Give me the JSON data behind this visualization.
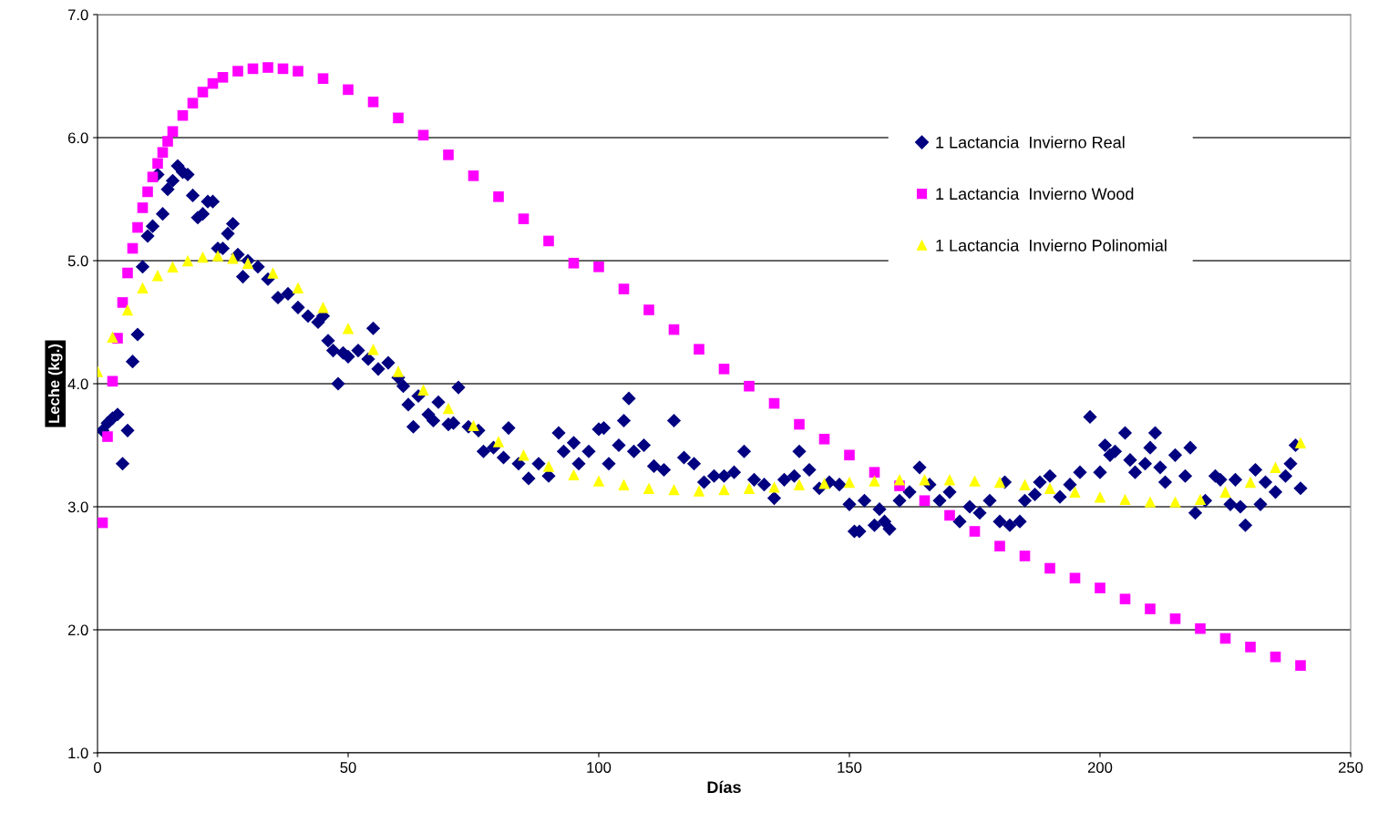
{
  "chart_data": {
    "type": "scatter",
    "xlabel": "Días",
    "ylabel": "Leche (kg.)",
    "xlim": [
      0,
      250
    ],
    "xticks": [
      0,
      50,
      100,
      150,
      200,
      250
    ],
    "ylim": [
      1,
      7
    ],
    "yticks": [
      {
        "value": 1,
        "label": "1.0"
      },
      {
        "value": 2,
        "label": "2.0"
      },
      {
        "value": 3,
        "label": "3.0"
      },
      {
        "value": 4,
        "label": "4.0"
      },
      {
        "value": 5,
        "label": "5.0"
      },
      {
        "value": 6,
        "label": "6.0"
      },
      {
        "value": 7,
        "label": "7.0"
      }
    ],
    "grid": "y",
    "legend": "top right",
    "series": [
      {
        "name": "1 Lactancia  Invierno Real",
        "color": "#000080",
        "marker": "diamond",
        "x": [
          1,
          2,
          3,
          4,
          5,
          6,
          7,
          8,
          9,
          10,
          11,
          12,
          13,
          14,
          15,
          16,
          17,
          18,
          19,
          20,
          21,
          22,
          23,
          24,
          25,
          26,
          27,
          28,
          29,
          30,
          32,
          34,
          36,
          38,
          40,
          42,
          44,
          45,
          46,
          47,
          48,
          49,
          50,
          52,
          54,
          55,
          56,
          58,
          60,
          61,
          62,
          63,
          64,
          66,
          67,
          68,
          70,
          71,
          72,
          74,
          76,
          77,
          79,
          81,
          82,
          84,
          86,
          88,
          90,
          92,
          93,
          95,
          96,
          98,
          100,
          101,
          102,
          104,
          105,
          106,
          107,
          109,
          111,
          113,
          115,
          117,
          119,
          121,
          123,
          125,
          127,
          129,
          131,
          133,
          135,
          137,
          139,
          140,
          142,
          144,
          146,
          148,
          150,
          151,
          152,
          153,
          155,
          156,
          157,
          158,
          160,
          162,
          164,
          166,
          168,
          170,
          172,
          174,
          176,
          178,
          180,
          181,
          182,
          184,
          185,
          187,
          188,
          190,
          192,
          194,
          196,
          198,
          200,
          201,
          202,
          203,
          205,
          206,
          207,
          209,
          210,
          211,
          212,
          213,
          215,
          217,
          218,
          219,
          221,
          223,
          224,
          226,
          227,
          228,
          229,
          231,
          232,
          233,
          235,
          237,
          238,
          239,
          240
        ],
        "values": [
          3.62,
          3.68,
          3.72,
          3.75,
          3.35,
          3.62,
          4.18,
          4.4,
          4.95,
          5.2,
          5.28,
          5.7,
          5.38,
          5.58,
          5.65,
          5.77,
          5.72,
          5.7,
          5.53,
          5.35,
          5.38,
          5.48,
          5.48,
          5.1,
          5.1,
          5.22,
          5.3,
          5.05,
          4.87,
          5.0,
          4.95,
          4.85,
          4.7,
          4.73,
          4.62,
          4.55,
          4.5,
          4.55,
          4.35,
          4.27,
          4.0,
          4.25,
          4.22,
          4.27,
          4.2,
          4.45,
          4.12,
          4.17,
          4.05,
          3.98,
          3.83,
          3.65,
          3.9,
          3.75,
          3.7,
          3.85,
          3.67,
          3.68,
          3.97,
          3.65,
          3.62,
          3.45,
          3.48,
          3.4,
          3.64,
          3.35,
          3.23,
          3.35,
          3.25,
          3.6,
          3.45,
          3.52,
          3.35,
          3.45,
          3.63,
          3.64,
          3.35,
          3.5,
          3.7,
          3.88,
          3.45,
          3.5,
          3.33,
          3.3,
          3.7,
          3.4,
          3.35,
          3.2,
          3.25,
          3.25,
          3.28,
          3.45,
          3.22,
          3.18,
          3.07,
          3.22,
          3.25,
          3.45,
          3.3,
          3.15,
          3.2,
          3.18,
          3.02,
          2.8,
          2.8,
          3.05,
          2.85,
          2.98,
          2.88,
          2.82,
          3.05,
          3.12,
          3.32,
          3.18,
          3.05,
          3.12,
          2.88,
          3.0,
          2.95,
          3.05,
          2.88,
          3.2,
          2.85,
          2.88,
          3.05,
          3.1,
          3.2,
          3.25,
          3.08,
          3.18,
          3.28,
          3.73,
          3.28,
          3.5,
          3.42,
          3.45,
          3.6,
          3.38,
          3.28,
          3.35,
          3.48,
          3.6,
          3.32,
          3.2,
          3.42,
          3.25,
          3.48,
          2.95,
          3.05,
          3.25,
          3.22,
          3.02,
          3.22,
          3.0,
          2.85,
          3.3,
          3.02,
          3.2,
          3.12,
          3.25,
          3.35,
          3.5,
          3.15
        ]
      },
      {
        "name": "1 Lactancia  Invierno Wood",
        "color": "#ff00ff",
        "marker": "square",
        "x": [
          1,
          2,
          3,
          4,
          5,
          6,
          7,
          8,
          9,
          10,
          11,
          12,
          13,
          14,
          15,
          17,
          19,
          21,
          23,
          25,
          28,
          31,
          34,
          37,
          40,
          45,
          50,
          55,
          60,
          65,
          70,
          75,
          80,
          85,
          90,
          95,
          100,
          105,
          110,
          115,
          120,
          125,
          130,
          135,
          140,
          145,
          150,
          155,
          160,
          165,
          170,
          175,
          180,
          185,
          190,
          195,
          200,
          205,
          210,
          215,
          220,
          225,
          230,
          235,
          240
        ],
        "values": [
          2.87,
          3.57,
          4.02,
          4.37,
          4.66,
          4.9,
          5.1,
          5.27,
          5.43,
          5.56,
          5.68,
          5.79,
          5.88,
          5.97,
          6.05,
          6.18,
          6.28,
          6.37,
          6.44,
          6.49,
          6.54,
          6.56,
          6.57,
          6.56,
          6.54,
          6.48,
          6.39,
          6.29,
          6.16,
          6.02,
          5.86,
          5.69,
          5.52,
          5.34,
          5.16,
          4.98,
          4.95,
          4.77,
          4.6,
          4.44,
          4.28,
          4.12,
          3.98,
          3.84,
          3.67,
          3.55,
          3.42,
          3.28,
          3.17,
          3.05,
          2.93,
          2.8,
          2.68,
          2.6,
          2.5,
          2.42,
          2.34,
          2.25,
          2.17,
          2.09,
          2.01,
          1.93,
          1.86,
          1.78,
          1.71
        ]
      },
      {
        "name": "1 Lactancia  Invierno Polinomial",
        "color": "#ffff00",
        "marker": "triangle",
        "x": [
          0,
          3,
          6,
          9,
          12,
          15,
          18,
          21,
          24,
          27,
          30,
          35,
          40,
          45,
          50,
          55,
          60,
          65,
          70,
          75,
          80,
          85,
          90,
          95,
          100,
          105,
          110,
          115,
          120,
          125,
          130,
          135,
          140,
          145,
          150,
          155,
          160,
          165,
          170,
          175,
          180,
          185,
          190,
          195,
          200,
          205,
          210,
          215,
          220,
          225,
          230,
          235,
          240
        ],
        "values": [
          4.1,
          4.38,
          4.6,
          4.78,
          4.88,
          4.95,
          5.0,
          5.03,
          5.04,
          5.02,
          4.98,
          4.9,
          4.78,
          4.62,
          4.45,
          4.28,
          4.1,
          3.95,
          3.8,
          3.66,
          3.53,
          3.42,
          3.33,
          3.26,
          3.21,
          3.18,
          3.15,
          3.14,
          3.13,
          3.14,
          3.15,
          3.16,
          3.18,
          3.19,
          3.2,
          3.21,
          3.22,
          3.22,
          3.22,
          3.21,
          3.2,
          3.18,
          3.15,
          3.12,
          3.08,
          3.06,
          3.04,
          3.04,
          3.06,
          3.12,
          3.2,
          3.32,
          3.52
        ]
      }
    ]
  }
}
